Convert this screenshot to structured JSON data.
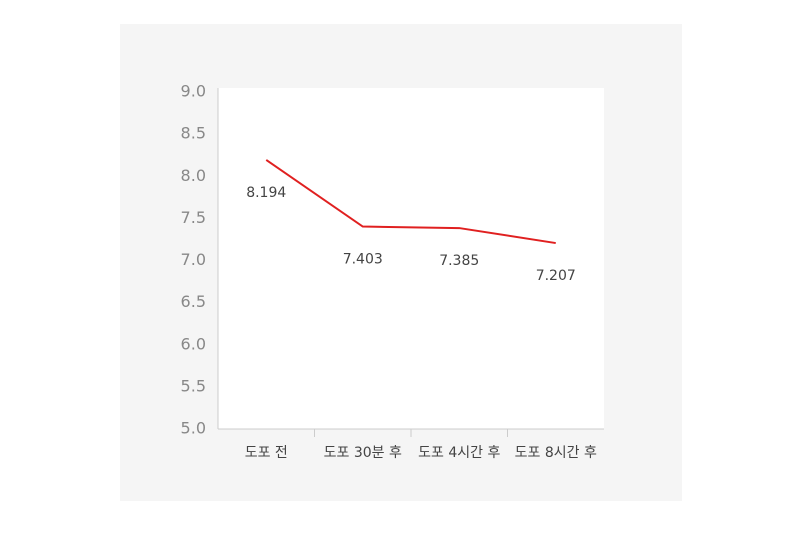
{
  "chart_data": {
    "type": "line",
    "categories": [
      "도포 전",
      "도포 30분 후",
      "도포 4시간 후",
      "도포 8시간 후"
    ],
    "series": [
      {
        "color": "#e02020",
        "values": [
          8.194,
          7.403,
          7.385,
          7.207
        ]
      }
    ],
    "ylim": [
      5,
      9
    ],
    "yticks": [
      {
        "value": 5,
        "label": "5.0"
      },
      5.5,
      {
        "value": 6,
        "label": "6.0"
      },
      6.5,
      {
        "value": 7,
        "label": "7.0"
      },
      7.5,
      {
        "value": 8,
        "label": "8.0"
      },
      8.5,
      {
        "value": 9,
        "label": "9.0"
      }
    ]
  }
}
